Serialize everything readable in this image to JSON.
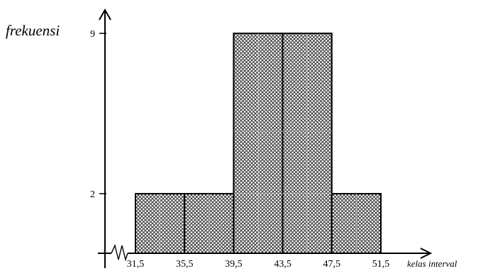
{
  "chart_data": {
    "type": "bar",
    "subtype": "histogram",
    "xlabel": "kelas interval",
    "ylabel": "frekuensi",
    "bin_edges": [
      31.5,
      35.5,
      39.5,
      43.5,
      47.5,
      51.5
    ],
    "bin_edge_labels": [
      "31,5",
      "35,5",
      "39,5",
      "43,5",
      "47,5",
      "51,5"
    ],
    "values": [
      2,
      2,
      9,
      9,
      2
    ],
    "ytick_values": [
      2,
      9
    ],
    "ytick_labels": [
      "2",
      "9"
    ],
    "ylim": [
      0,
      9
    ],
    "grid": false,
    "legend": "none",
    "bar_fill": "crosshatch pattern",
    "bar_stroke": "#000000",
    "axis_break": true
  }
}
